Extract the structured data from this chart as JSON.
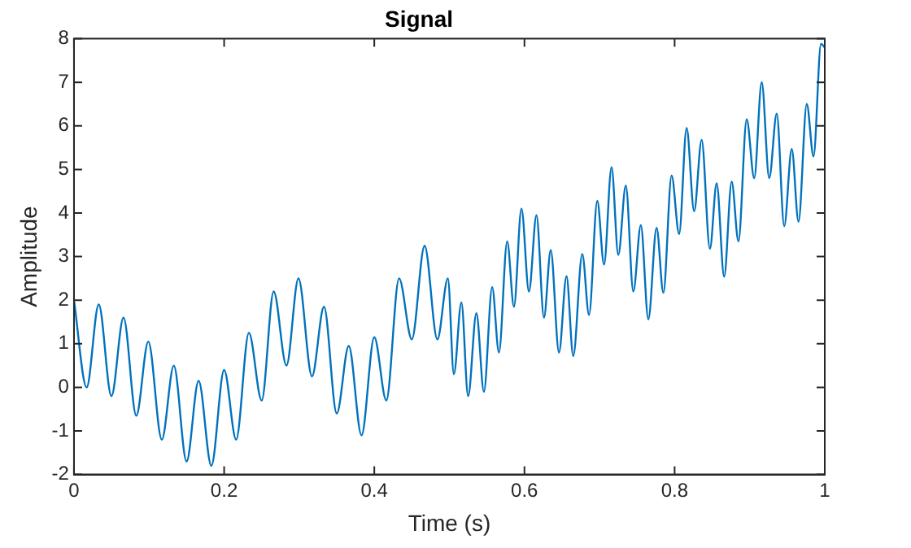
{
  "chart_data": {
    "type": "line",
    "title": "Signal",
    "xlabel": "Time (s)",
    "ylabel": "Amplitude",
    "x": [
      0,
      0.0169,
      0.033,
      0.0499,
      0.066,
      0.083,
      0.099,
      0.117,
      0.133,
      0.15,
      0.166,
      0.183,
      0.2,
      0.216,
      0.233,
      0.25,
      0.266,
      0.283,
      0.299,
      0.317,
      0.333,
      0.35,
      0.366,
      0.383,
      0.4,
      0.416,
      0.433,
      0.45,
      0.467,
      0.484,
      0.498,
      0.506,
      0.516,
      0.525,
      0.536,
      0.546,
      0.557,
      0.566,
      0.577,
      0.586,
      0.596,
      0.606,
      0.616,
      0.626,
      0.635,
      0.646,
      0.656,
      0.665,
      0.677,
      0.686,
      0.697,
      0.706,
      0.716,
      0.725,
      0.735,
      0.745,
      0.755,
      0.765,
      0.776,
      0.785,
      0.796,
      0.806,
      0.816,
      0.826,
      0.836,
      0.847,
      0.856,
      0.866,
      0.876,
      0.885,
      0.896,
      0.906,
      0.916,
      0.926,
      0.936,
      0.946,
      0.956,
      0.965,
      0.976,
      0.985,
      0.995,
      1
    ],
    "series": [
      {
        "color": "#0072bd",
        "values": [
          2,
          0,
          1.9,
          -0.2,
          1.6,
          -0.65,
          1.05,
          -1.2,
          0.5,
          -1.7,
          0.15,
          -1.8,
          0.4,
          -1.2,
          1.25,
          -0.3,
          2.2,
          0.5,
          2.5,
          0.25,
          1.85,
          -0.6,
          0.95,
          -1.1,
          1.15,
          -0.3,
          2.5,
          1.1,
          3.25,
          1.1,
          2.5,
          0.3,
          1.95,
          -0.2,
          1.7,
          -0.1,
          2.3,
          0.8,
          3.35,
          1.85,
          4.1,
          2.2,
          3.95,
          1.6,
          3.15,
          0.8,
          2.55,
          0.72,
          3.06,
          1.66,
          4.28,
          2.82,
          5.05,
          3.04,
          4.63,
          2.2,
          3.72,
          1.56,
          3.66,
          2.17,
          4.86,
          3.52,
          5.95,
          4.04,
          5.68,
          3.18,
          4.68,
          2.54,
          4.72,
          3.35,
          6.15,
          4.8,
          7,
          4.8,
          6.28,
          3.7,
          5.47,
          3.8,
          6.5,
          5.3,
          7.88,
          7.8
        ]
      }
    ],
    "xlim": [
      0,
      1
    ],
    "xticks": [
      0,
      0.2,
      0.4,
      0.6,
      0.8,
      1
    ],
    "ylim": [
      -2,
      8
    ],
    "yticks": [
      -2,
      -1,
      0,
      1,
      2,
      3,
      4,
      5,
      6,
      7,
      8
    ],
    "grid": false,
    "legend": false,
    "marker": "none",
    "line_style": "solid"
  }
}
